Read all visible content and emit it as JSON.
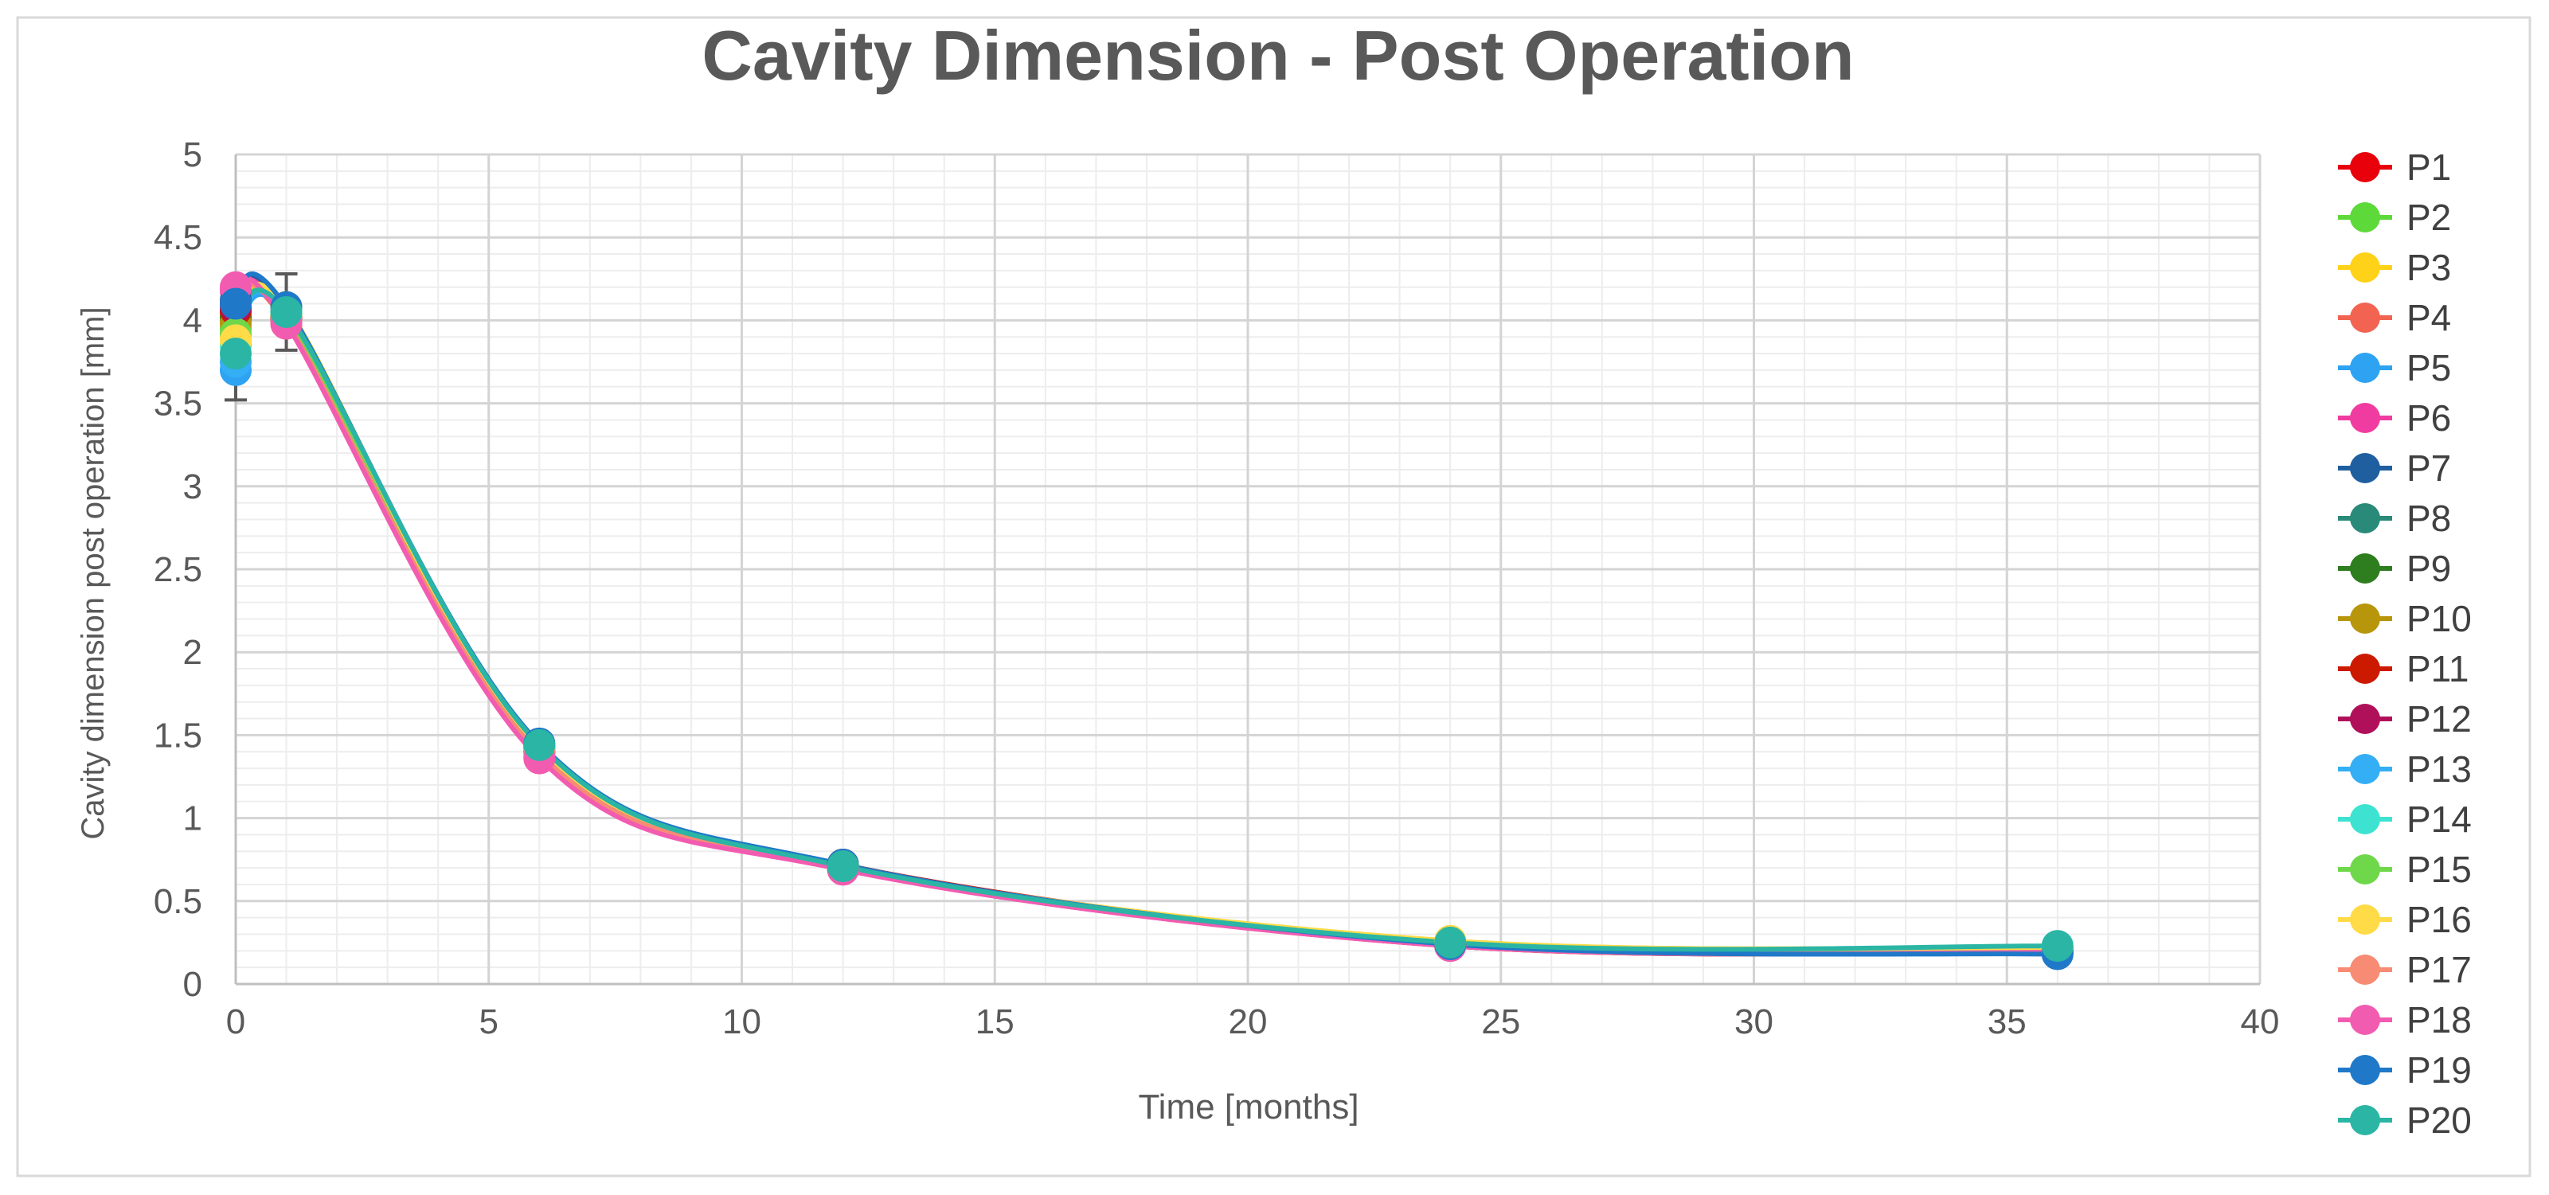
{
  "chart_data": {
    "type": "line",
    "title": "Cavity Dimension - Post Operation",
    "xlabel": "Time [months]",
    "ylabel": "Cavity dimension post operation [mm]",
    "xlim": [
      0,
      40
    ],
    "ylim": [
      0,
      5
    ],
    "x_ticks": [
      "0",
      "5",
      "10",
      "15",
      "20",
      "25",
      "30",
      "35",
      "40"
    ],
    "y_ticks": [
      "0",
      "0.5",
      "1",
      "1.5",
      "2",
      "2.5",
      "3",
      "3.5",
      "4",
      "4.5",
      "5"
    ],
    "grid": true,
    "legend_position": "right",
    "x": [
      0,
      1,
      6,
      12,
      24,
      36
    ],
    "series": [
      {
        "name": "P1",
        "color": "#e8000b",
        "values": [
          4.05,
          4.02,
          1.42,
          0.72,
          0.24,
          0.2
        ]
      },
      {
        "name": "P2",
        "color": "#5ed93a",
        "values": [
          3.95,
          4.05,
          1.4,
          0.7,
          0.25,
          0.21
        ]
      },
      {
        "name": "P3",
        "color": "#ffd21a",
        "values": [
          3.9,
          4.08,
          1.41,
          0.71,
          0.26,
          0.22
        ]
      },
      {
        "name": "P4",
        "color": "#f26451",
        "values": [
          4.1,
          3.98,
          1.39,
          0.7,
          0.23,
          0.19
        ]
      },
      {
        "name": "P5",
        "color": "#2ea3f2",
        "values": [
          3.7,
          4.04,
          1.43,
          0.71,
          0.24,
          0.2
        ]
      },
      {
        "name": "P6",
        "color": "#f03ca0",
        "values": [
          4.18,
          4.0,
          1.37,
          0.69,
          0.23,
          0.19
        ]
      },
      {
        "name": "P7",
        "color": "#1f5fa0",
        "values": [
          4.12,
          4.06,
          1.44,
          0.72,
          0.24,
          0.19
        ]
      },
      {
        "name": "P8",
        "color": "#2a8a7a",
        "values": [
          4.0,
          4.03,
          1.42,
          0.71,
          0.24,
          0.2
        ]
      },
      {
        "name": "P9",
        "color": "#2e7d1e",
        "values": [
          4.02,
          4.01,
          1.41,
          0.7,
          0.24,
          0.2
        ]
      },
      {
        "name": "P10",
        "color": "#b8960c",
        "values": [
          3.98,
          4.04,
          1.42,
          0.71,
          0.25,
          0.21
        ]
      },
      {
        "name": "P11",
        "color": "#cc1a00",
        "values": [
          4.06,
          4.02,
          1.4,
          0.72,
          0.24,
          0.19
        ]
      },
      {
        "name": "P12",
        "color": "#b0105a",
        "values": [
          4.08,
          4.0,
          1.4,
          0.71,
          0.23,
          0.19
        ]
      },
      {
        "name": "P13",
        "color": "#34aef5",
        "values": [
          3.75,
          4.05,
          1.43,
          0.71,
          0.24,
          0.2
        ]
      },
      {
        "name": "P14",
        "color": "#3de3d0",
        "values": [
          3.85,
          4.06,
          1.43,
          0.7,
          0.25,
          0.21
        ]
      },
      {
        "name": "P15",
        "color": "#6ed84a",
        "values": [
          3.92,
          4.04,
          1.41,
          0.7,
          0.25,
          0.21
        ]
      },
      {
        "name": "P16",
        "color": "#ffdb47",
        "values": [
          3.88,
          4.07,
          1.41,
          0.71,
          0.26,
          0.22
        ]
      },
      {
        "name": "P17",
        "color": "#f78b73",
        "values": [
          4.1,
          3.99,
          1.39,
          0.7,
          0.23,
          0.19
        ]
      },
      {
        "name": "P18",
        "color": "#f25cb0",
        "values": [
          4.2,
          3.98,
          1.36,
          0.69,
          0.23,
          0.19
        ]
      },
      {
        "name": "P19",
        "color": "#1f78c8",
        "values": [
          4.1,
          4.08,
          1.45,
          0.72,
          0.24,
          0.18
        ]
      },
      {
        "name": "P20",
        "color": "#2bb5a5",
        "values": [
          3.8,
          4.05,
          1.44,
          0.71,
          0.25,
          0.23
        ]
      }
    ],
    "error_bars": [
      {
        "x": 0,
        "low": 3.52,
        "high": 3.92
      },
      {
        "x": 1,
        "low": 3.82,
        "high": 4.28
      }
    ]
  }
}
